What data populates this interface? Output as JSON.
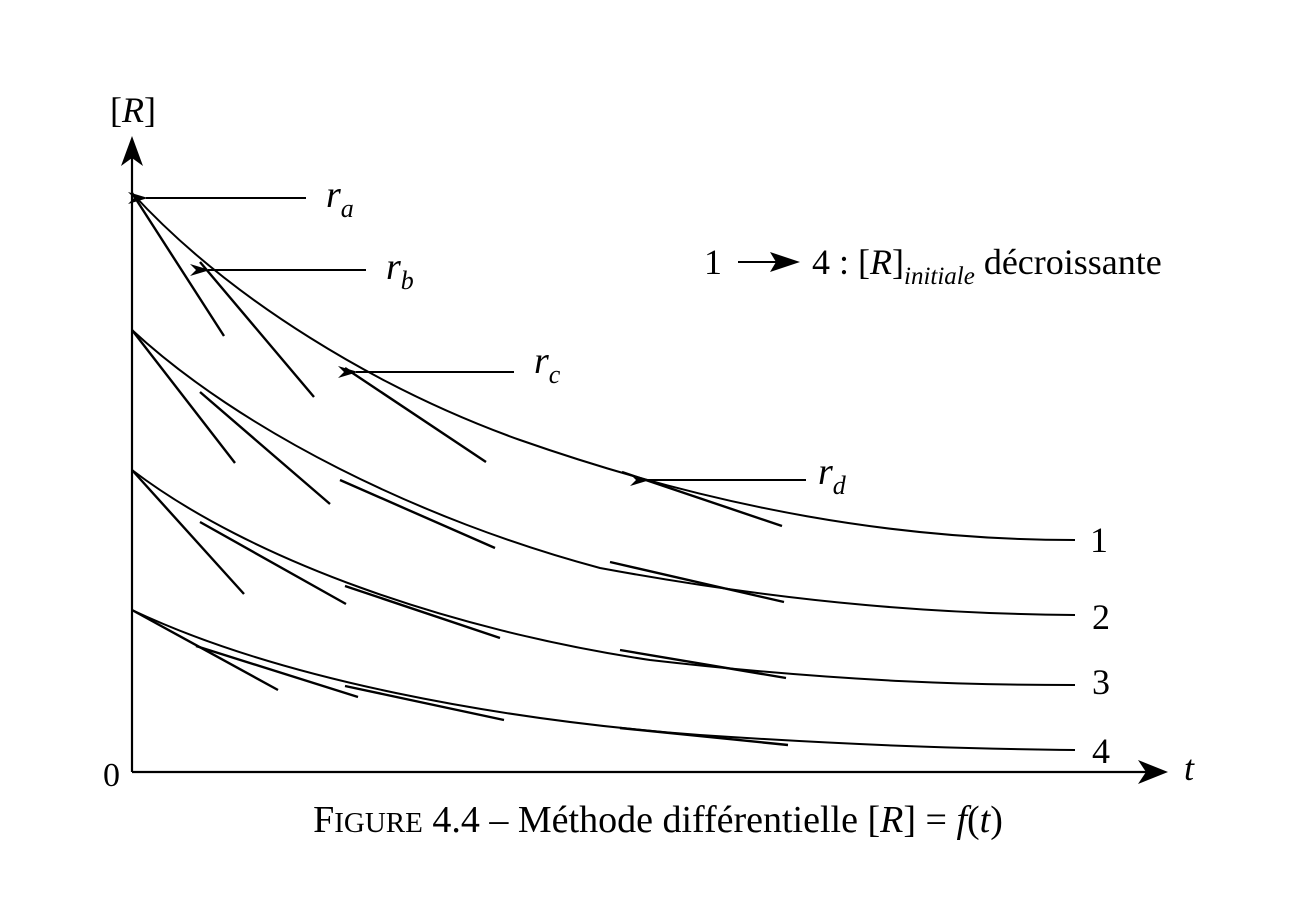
{
  "axes": {
    "y_label_open": "[",
    "y_label_var": "R",
    "y_label_close": "]",
    "x_label": "t",
    "origin_label": "0"
  },
  "annotations": {
    "ra": {
      "r": "r",
      "sub": "a"
    },
    "rb": {
      "r": "r",
      "sub": "b"
    },
    "rc": {
      "r": "r",
      "sub": "c"
    },
    "rd": {
      "r": "r",
      "sub": "d"
    }
  },
  "legend": {
    "from": "1",
    "to": "4 : [",
    "var": "R",
    "close": "]",
    "sub": "initiale",
    "word": " décroissante"
  },
  "curves": [
    {
      "label": "1"
    },
    {
      "label": "2"
    },
    {
      "label": "3"
    },
    {
      "label": "4"
    }
  ],
  "caption": {
    "figure_first": "F",
    "figure_rest": "IGURE",
    "number": " 4.4 – Méthode différentielle [",
    "var": "R",
    "mid": "] = ",
    "func": "f",
    "open": "(",
    "arg": "t",
    "close": ")"
  }
}
